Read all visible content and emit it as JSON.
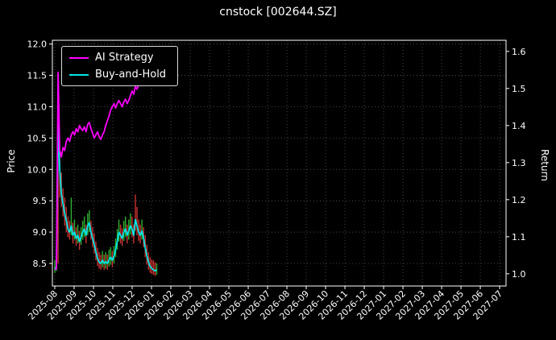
{
  "chart_data": {
    "type": "line",
    "title": "cnstock [002644.SZ]",
    "ylabel_left": "Price",
    "ylabel_right": "Return",
    "grid": true,
    "legend_position": "upper left",
    "background": "#000000",
    "x_tick_labels": [
      "2025-08",
      "2025-09",
      "2025-10",
      "2025-11",
      "2025-12",
      "2026-01",
      "2026-02",
      "2026-03",
      "2026-04",
      "2026-05",
      "2026-06",
      "2026-07",
      "2026-08",
      "2026-09",
      "2026-10",
      "2026-11",
      "2026-12",
      "2027-01",
      "2027-02",
      "2027-03",
      "2027-04",
      "2027-05",
      "2027-06",
      "2027-07"
    ],
    "xlim": [
      -0.125,
      23.33
    ],
    "left_ticks": [
      8.5,
      9.0,
      9.5,
      10.0,
      10.5,
      11.0,
      11.5,
      12.0
    ],
    "right_ticks": [
      1.0,
      1.1,
      1.2,
      1.3,
      1.4,
      1.5,
      1.6
    ],
    "ylim_left": [
      8.14,
      12.06
    ],
    "ylim_right": [
      0.967,
      1.63
    ],
    "t_start": 0,
    "t_step": 0.085,
    "series": [
      {
        "name": "AI Strategy",
        "color": "#ff00ff",
        "axis": "left",
        "values": [
          8.4,
          8.42,
          11.55,
          10.3,
          10.2,
          10.35,
          10.3,
          10.45,
          10.5,
          10.45,
          10.55,
          10.6,
          10.55,
          10.65,
          10.6,
          10.7,
          10.65,
          10.62,
          10.68,
          10.6,
          10.72,
          10.75,
          10.65,
          10.58,
          10.5,
          10.55,
          10.6,
          10.52,
          10.48,
          10.55,
          10.6,
          10.7,
          10.78,
          10.85,
          10.95,
          11.0,
          11.05,
          10.98,
          11.05,
          11.1,
          11.05,
          11.0,
          11.08,
          11.12,
          11.05,
          11.1,
          11.18,
          11.25,
          11.2,
          11.32,
          11.28,
          11.35,
          11.42,
          11.38,
          11.45,
          11.5,
          11.45,
          11.52,
          11.48,
          11.52,
          11.55,
          11.52,
          11.65
        ]
      },
      {
        "name": "Buy-and-Hold",
        "color": "#00e6e6",
        "axis": "left",
        "values": [
          8.4,
          8.45,
          10.7,
          10.0,
          9.6,
          9.45,
          9.3,
          9.18,
          9.05,
          9.0,
          9.1,
          8.95,
          9.0,
          8.9,
          8.95,
          8.85,
          8.92,
          9.0,
          9.05,
          8.95,
          9.1,
          9.15,
          9.0,
          8.9,
          8.8,
          8.68,
          8.58,
          8.52,
          8.5,
          8.55,
          8.5,
          8.53,
          8.5,
          8.56,
          8.6,
          8.55,
          8.62,
          8.72,
          8.85,
          9.0,
          8.95,
          8.9,
          9.0,
          9.05,
          8.95,
          9.02,
          9.1,
          9.05,
          8.95,
          9.2,
          9.1,
          9.0,
          8.95,
          9.02,
          8.9,
          8.75,
          8.62,
          8.52,
          8.45,
          8.42,
          8.4,
          8.38,
          8.4
        ]
      }
    ],
    "price_bars": {
      "up_color": "#2eaf2e",
      "down_color": "#cc3333",
      "low": [
        8.35,
        8.38,
        8.5,
        9.55,
        9.4,
        9.25,
        9.1,
        9.0,
        8.92,
        8.88,
        8.95,
        8.82,
        8.88,
        8.78,
        8.82,
        8.72,
        8.8,
        8.88,
        8.92,
        8.82,
        8.95,
        9.0,
        8.88,
        8.76,
        8.66,
        8.55,
        8.46,
        8.42,
        8.4,
        8.44,
        8.4,
        8.42,
        8.4,
        8.45,
        8.48,
        8.44,
        8.5,
        8.6,
        8.72,
        8.85,
        8.82,
        8.78,
        8.86,
        8.92,
        8.82,
        8.88,
        8.96,
        8.92,
        8.82,
        9.02,
        8.95,
        8.86,
        8.82,
        8.88,
        8.76,
        8.6,
        8.48,
        8.4,
        8.35,
        8.33,
        8.32,
        8.3,
        8.32
      ],
      "high": [
        8.55,
        8.6,
        11.5,
        10.45,
        9.95,
        9.7,
        9.55,
        9.4,
        9.25,
        9.18,
        9.55,
        9.15,
        9.2,
        9.08,
        9.12,
        9.02,
        9.08,
        9.18,
        9.25,
        9.12,
        9.3,
        9.35,
        9.18,
        9.08,
        8.98,
        8.85,
        8.75,
        8.68,
        8.64,
        8.7,
        8.64,
        8.68,
        8.64,
        8.72,
        8.76,
        8.7,
        8.78,
        8.9,
        9.05,
        9.2,
        9.12,
        9.06,
        9.18,
        9.25,
        9.12,
        9.2,
        9.3,
        9.25,
        9.12,
        9.6,
        9.4,
        9.2,
        9.12,
        9.2,
        9.08,
        8.95,
        8.8,
        8.68,
        8.6,
        8.56,
        8.55,
        8.52,
        8.5
      ],
      "dir": [
        "g",
        "g",
        "r",
        "r",
        "r",
        "r",
        "r",
        "r",
        "r",
        "r",
        "g",
        "r",
        "g",
        "r",
        "g",
        "r",
        "g",
        "g",
        "g",
        "r",
        "g",
        "g",
        "r",
        "r",
        "r",
        "r",
        "r",
        "r",
        "r",
        "g",
        "r",
        "g",
        "r",
        "g",
        "g",
        "r",
        "g",
        "g",
        "g",
        "g",
        "r",
        "r",
        "g",
        "g",
        "r",
        "g",
        "g",
        "r",
        "r",
        "r",
        "r",
        "r",
        "r",
        "g",
        "r",
        "r",
        "r",
        "r",
        "r",
        "r",
        "r",
        "r",
        "g"
      ]
    }
  }
}
